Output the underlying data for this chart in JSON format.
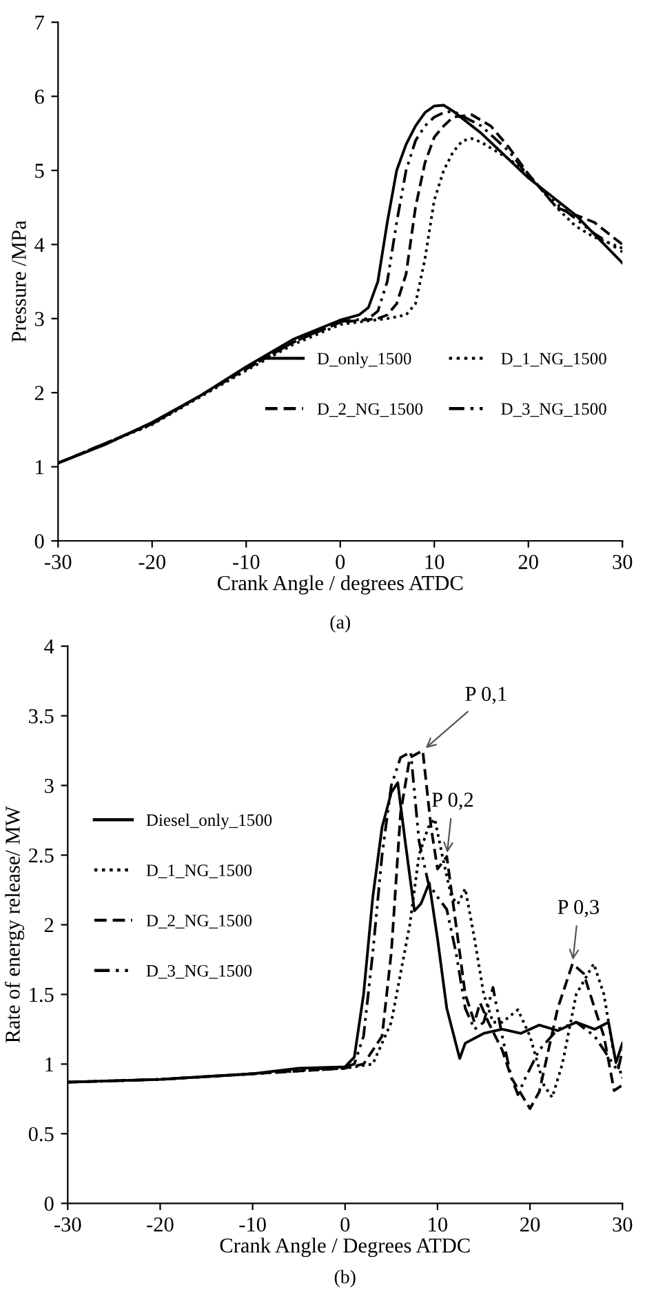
{
  "chart_data": [
    {
      "type": "line",
      "xlabel": "Crank Angle / degrees ATDC",
      "ylabel": "Pressure /MPa",
      "xlim": [
        -30,
        30
      ],
      "ylim": [
        0,
        7
      ],
      "xticks": [
        -30,
        -20,
        -10,
        0,
        10,
        20,
        30
      ],
      "yticks": [
        0,
        1,
        2,
        3,
        4,
        5,
        6,
        7
      ],
      "grid": false,
      "legend": "right",
      "annotations": [
        "(a)"
      ],
      "series": [
        {
          "name": "D_only_1500",
          "color": "#000000",
          "line_style": "solid",
          "x": [
            -30,
            -25,
            -20,
            -15,
            -10,
            -5,
            0,
            2,
            3,
            4,
            5,
            6,
            7,
            8,
            9,
            10,
            11,
            12,
            15,
            20,
            25,
            30
          ],
          "values": [
            1.05,
            1.3,
            1.6,
            1.95,
            2.35,
            2.72,
            2.98,
            3.05,
            3.15,
            3.5,
            4.3,
            5.0,
            5.35,
            5.6,
            5.78,
            5.87,
            5.88,
            5.8,
            5.5,
            4.9,
            4.4,
            3.75
          ]
        },
        {
          "name": "D_1_NG_1500",
          "color": "#000000",
          "line_style": "dotted",
          "x": [
            -30,
            -20,
            -10,
            -5,
            0,
            3,
            5,
            7,
            8,
            9,
            10,
            11,
            12,
            13,
            14,
            15,
            18,
            20,
            23,
            25,
            27,
            30
          ],
          "values": [
            1.05,
            1.57,
            2.3,
            2.65,
            2.92,
            2.97,
            3.0,
            3.05,
            3.2,
            3.8,
            4.6,
            5.0,
            5.25,
            5.4,
            5.43,
            5.38,
            5.15,
            4.95,
            4.5,
            4.25,
            4.1,
            3.95
          ]
        },
        {
          "name": "D_2_NG_1500",
          "color": "#000000",
          "line_style": "dashed",
          "x": [
            -30,
            -20,
            -10,
            -5,
            0,
            4,
            5,
            6,
            7,
            8,
            9,
            10,
            11,
            12,
            14,
            16,
            18,
            20,
            23,
            25,
            27,
            30
          ],
          "values": [
            1.05,
            1.58,
            2.32,
            2.68,
            2.95,
            3.0,
            3.05,
            3.2,
            3.6,
            4.5,
            5.1,
            5.45,
            5.6,
            5.72,
            5.75,
            5.6,
            5.3,
            4.95,
            4.5,
            4.4,
            4.3,
            4.0
          ]
        },
        {
          "name": "D_3_NG_1500",
          "color": "#000000",
          "line_style": "dashdot",
          "x": [
            -30,
            -20,
            -10,
            -5,
            0,
            3,
            4,
            5,
            6,
            7,
            8,
            9,
            10,
            11,
            12,
            15,
            18,
            20,
            23,
            25,
            27,
            30
          ],
          "values": [
            1.05,
            1.58,
            2.32,
            2.68,
            2.96,
            3.0,
            3.1,
            3.5,
            4.3,
            5.0,
            5.4,
            5.6,
            5.72,
            5.78,
            5.8,
            5.6,
            5.25,
            4.92,
            4.55,
            4.35,
            4.15,
            3.9
          ]
        }
      ]
    },
    {
      "type": "line",
      "xlabel": "Crank Angle / Degrees ATDC",
      "ylabel": "Rate of energy release/ MW",
      "xlim": [
        -30,
        30
      ],
      "ylim": [
        0,
        4
      ],
      "xticks": [
        -30,
        -20,
        -10,
        0,
        10,
        20,
        30
      ],
      "yticks": [
        0,
        0.5,
        1,
        1.5,
        2,
        2.5,
        3,
        3.5,
        4
      ],
      "grid": false,
      "legend": "left",
      "annotations": [
        {
          "text": "P 0,1",
          "x": 8.4,
          "y": 3.25
        },
        {
          "text": "P 0,2",
          "x": 11,
          "y": 2.49
        },
        {
          "text": "P 0,3",
          "x": 24.6,
          "y": 1.72
        },
        "(b)"
      ],
      "series": [
        {
          "name": "Diesel_only_1500",
          "color": "#000000",
          "line_style": "solid",
          "x": [
            -30,
            -20,
            -10,
            -5,
            0,
            1,
            2,
            3,
            4,
            5,
            5.7,
            6.5,
            7.5,
            8.2,
            9.1,
            10,
            11,
            12.4,
            13,
            15,
            17,
            19,
            21,
            23,
            25,
            27,
            28.5,
            29.3,
            30
          ],
          "values": [
            0.87,
            0.89,
            0.93,
            0.97,
            0.98,
            1.05,
            1.5,
            2.2,
            2.7,
            2.95,
            3.02,
            2.6,
            2.1,
            2.15,
            2.3,
            1.9,
            1.4,
            1.04,
            1.15,
            1.22,
            1.25,
            1.22,
            1.28,
            1.24,
            1.3,
            1.25,
            1.3,
            1.01,
            1.15
          ]
        },
        {
          "name": "D_1_NG_1500",
          "color": "#000000",
          "line_style": "dotted",
          "x": [
            -30,
            -20,
            -10,
            0,
            3,
            5,
            7,
            8,
            9,
            9.7,
            10.5,
            11.5,
            12.2,
            13,
            14,
            15,
            16,
            17,
            18.7,
            20,
            21.5,
            22.4,
            23.5,
            25,
            26.9,
            28,
            29,
            30
          ],
          "values": [
            0.87,
            0.89,
            0.93,
            0.97,
            1.0,
            1.3,
            2.0,
            2.5,
            2.7,
            2.76,
            2.5,
            2.2,
            2.15,
            2.26,
            1.9,
            1.5,
            1.3,
            1.3,
            1.39,
            1.2,
            0.85,
            0.76,
            1.0,
            1.5,
            1.72,
            1.5,
            1.1,
            0.9
          ]
        },
        {
          "name": "D_2_NG_1500",
          "color": "#000000",
          "line_style": "dashed",
          "x": [
            -30,
            -20,
            -10,
            0,
            2,
            4,
            5,
            6,
            7,
            8.4,
            9.3,
            10,
            11,
            12,
            13,
            14,
            14.6,
            15.5,
            17,
            18,
            20,
            21,
            22,
            23,
            24.6,
            25.8,
            27,
            28,
            29.1,
            30
          ],
          "values": [
            0.87,
            0.89,
            0.93,
            0.97,
            1.0,
            1.2,
            1.8,
            2.8,
            3.2,
            3.25,
            2.7,
            2.4,
            2.49,
            2.0,
            1.5,
            1.3,
            1.44,
            1.3,
            1.1,
            0.9,
            0.68,
            0.8,
            1.1,
            1.4,
            1.72,
            1.65,
            1.4,
            1.2,
            0.81,
            0.85
          ]
        },
        {
          "name": "D_3_NG_1500",
          "color": "#000000",
          "line_style": "dashdot",
          "x": [
            -30,
            -20,
            -10,
            0,
            1,
            2,
            3,
            4,
            5,
            6,
            7.1,
            8,
            9,
            10,
            11,
            12,
            13,
            14,
            15,
            16,
            17,
            18,
            18.7,
            19.5,
            21,
            23,
            25,
            27,
            28.5,
            29.5,
            30
          ],
          "values": [
            0.87,
            0.89,
            0.93,
            0.98,
            1.0,
            1.2,
            1.8,
            2.5,
            3.0,
            3.2,
            3.24,
            2.6,
            2.3,
            2.2,
            2.11,
            1.8,
            1.4,
            1.25,
            1.3,
            1.55,
            1.2,
            0.9,
            0.78,
            0.9,
            1.1,
            1.25,
            1.3,
            1.2,
            1.05,
            0.95,
            1.1
          ]
        }
      ]
    }
  ]
}
